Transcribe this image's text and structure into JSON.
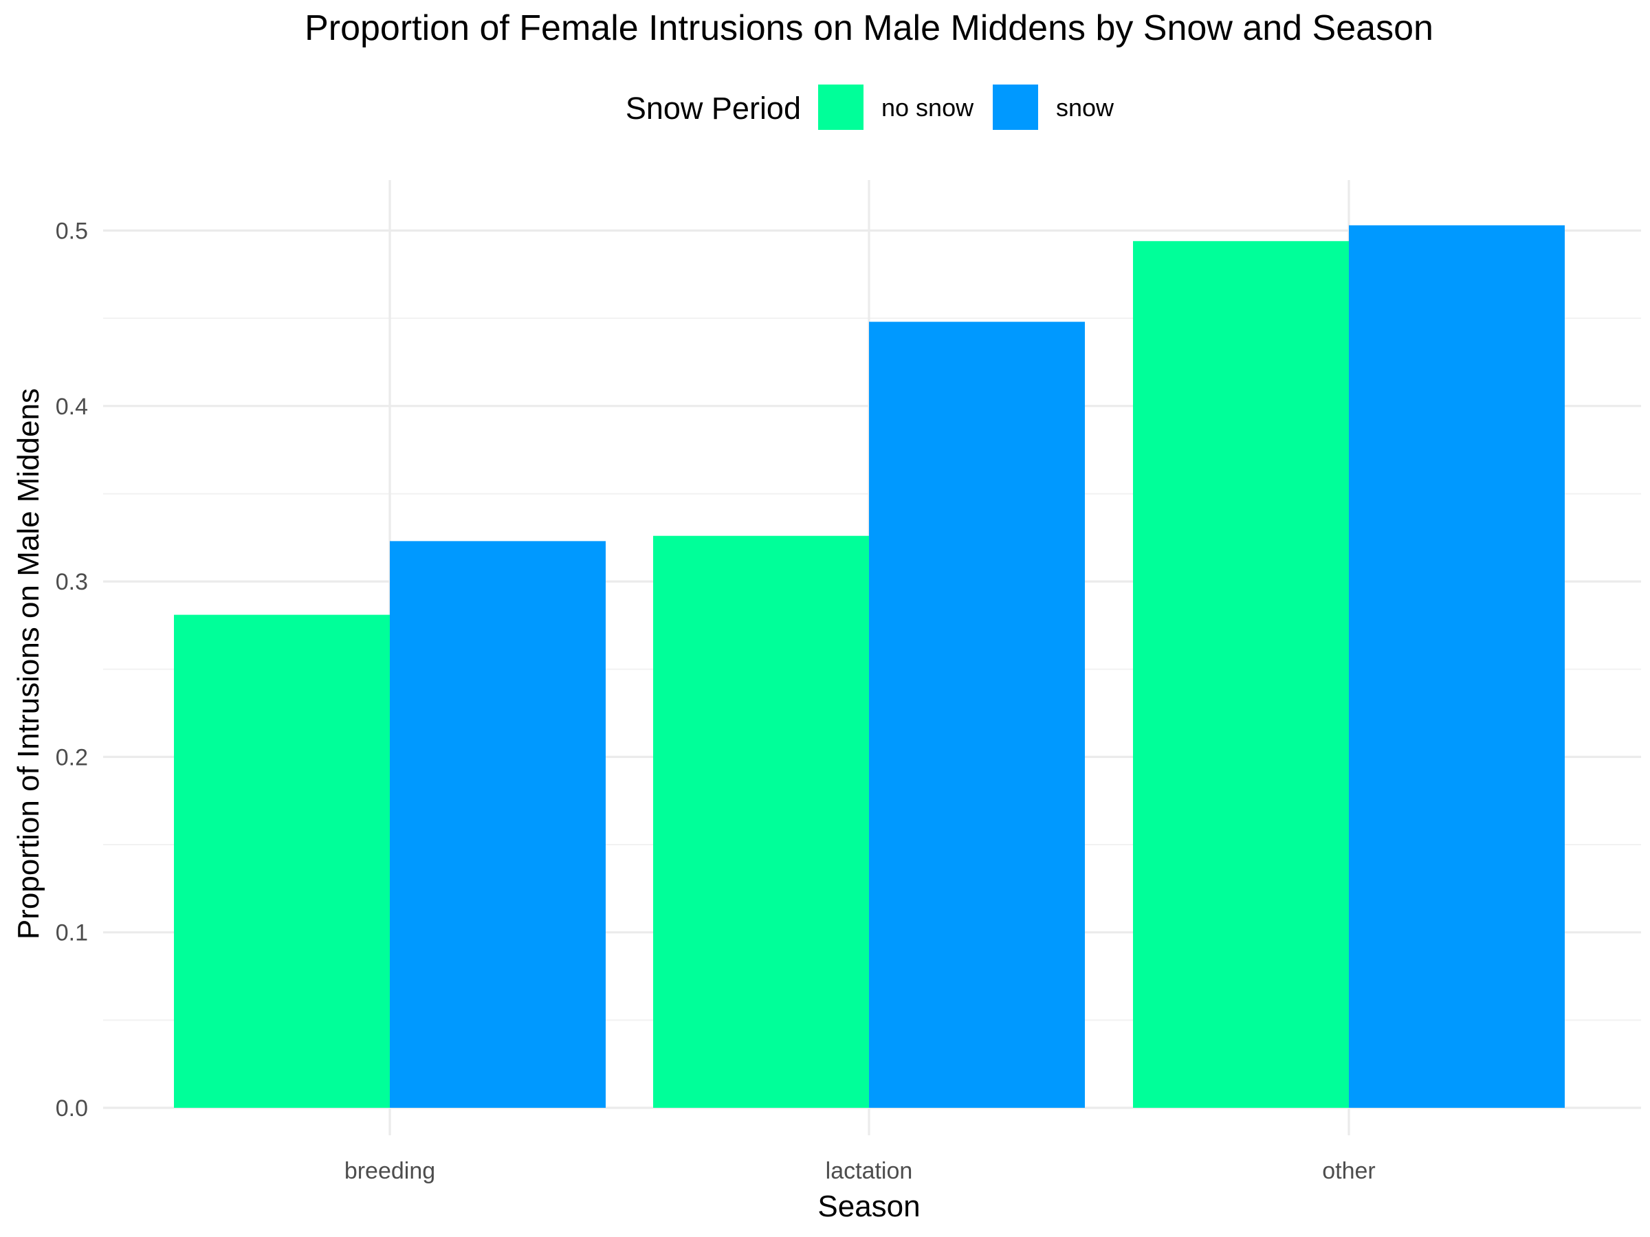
{
  "chart_data": {
    "type": "bar",
    "title": "Proportion of Female Intrusions on Male Middens by Snow and Season",
    "xlabel": "Season",
    "ylabel": "Proportion of Intrusions on Male Middens",
    "categories": [
      "breeding",
      "lactation",
      "other"
    ],
    "series": [
      {
        "name": "no snow",
        "color": "#00FF99",
        "values": [
          0.281,
          0.326,
          0.494
        ]
      },
      {
        "name": "snow",
        "color": "#0099FF",
        "values": [
          0.323,
          0.448,
          0.503
        ]
      }
    ],
    "ylim": [
      0,
      0.525
    ],
    "yticks": [
      0.0,
      0.1,
      0.2,
      0.3,
      0.4,
      0.5
    ],
    "ytick_labels": [
      "0.0",
      "0.1",
      "0.2",
      "0.3",
      "0.4",
      "0.5"
    ],
    "legend": {
      "title": "Snow Period",
      "placement": "top"
    },
    "grid": true
  }
}
